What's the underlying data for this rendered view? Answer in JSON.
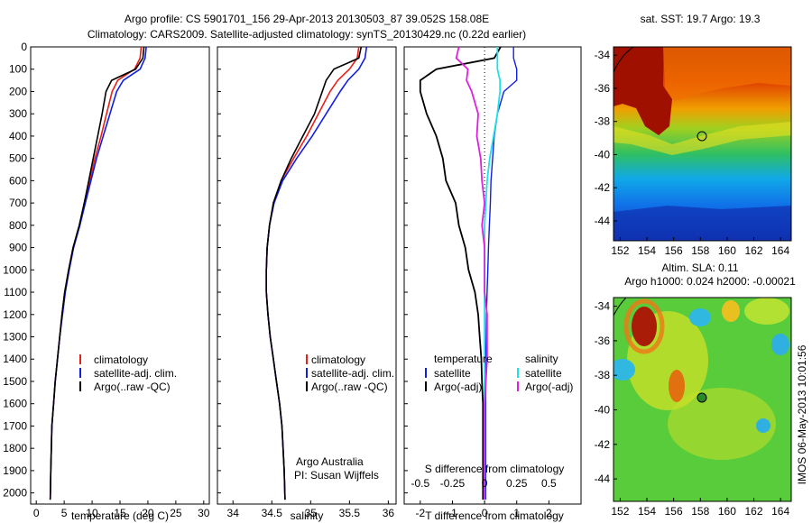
{
  "header": {
    "line1": "Argo profile: CS 5901701_156 29-Apr-2013 20130503_87 39.052S 158.08E",
    "line2": "Climatology: CARS2009. Satellite-adjusted climatology: synTS_20130429.nc (0.22d earlier)"
  },
  "depth_ticks": [
    "0",
    "100",
    "200",
    "300",
    "400",
    "500",
    "600",
    "700",
    "800",
    "900",
    "1000",
    "1100",
    "1200",
    "1300",
    "1400",
    "1500",
    "1600",
    "1700",
    "1800",
    "1900",
    "2000"
  ],
  "panels": {
    "temperature": {
      "xlabel": "temperature (deg C)",
      "xticks": [
        "0",
        "5",
        "10",
        "15",
        "20",
        "25",
        "30"
      ],
      "legend": [
        "climatology",
        "satellite-adj. clim.",
        "Argo(..raw -QC)"
      ]
    },
    "salinity": {
      "xlabel": "salinity",
      "xticks": [
        "34",
        "34.5",
        "35",
        "35.5",
        "36"
      ],
      "legend": [
        "climatology",
        "satellite-adj. clim.",
        "Argo(..raw -QC)"
      ],
      "credit1": "Argo Australia",
      "credit2": "PI: Susan Wijffels"
    },
    "difference": {
      "xlabel_bottom": "T difference from climatology",
      "xlabel_top": "S difference from climatology",
      "xticks_t": [
        "-2",
        "-1",
        "0",
        "1",
        "2"
      ],
      "xticks_s": [
        "-0.5",
        "-0.25",
        "0",
        "0.25",
        "0.5"
      ],
      "legend_t_title": "temperature",
      "legend_s_title": "salinity",
      "legend_t": [
        "satellite",
        "Argo(-adj)"
      ],
      "legend_s": [
        "satellite",
        "Argo(-adj)"
      ]
    },
    "sst_map": {
      "title": "sat. SST: 19.7 Argo: 19.3",
      "lat_ticks": [
        "-34",
        "-36",
        "-38",
        "-40",
        "-42",
        "-44"
      ],
      "lon_ticks": [
        "152",
        "154",
        "156",
        "158",
        "160",
        "162",
        "164"
      ]
    },
    "sla_map": {
      "title1": "Altim. SLA: 0.11",
      "title2": "Argo h1000: 0.024 h2000: -0.00021",
      "lat_ticks": [
        "-34",
        "-36",
        "-38",
        "-40",
        "-42",
        "-44"
      ],
      "lon_ticks": [
        "152",
        "154",
        "156",
        "158",
        "160",
        "162",
        "164"
      ],
      "side_text": "IMOS 06-May-2013 10:01:56"
    }
  },
  "colors": {
    "climatology": "#e8201a",
    "satellite": "#1020e0",
    "argo": "#000000",
    "sat_s": "#20e0e8",
    "argo_s": "#e020e0"
  },
  "chart_data": [
    {
      "type": "line",
      "xlabel": "temperature (deg C)",
      "ylabel": "",
      "xlim": [
        -1,
        31
      ],
      "ylim": [
        2050,
        0
      ],
      "series": [
        {
          "name": "climatology",
          "x": [
            18.8,
            18.6,
            17.6,
            14.6,
            13.6,
            12.6,
            11.6,
            10.5,
            9.6,
            8.6,
            7.8,
            6.6,
            5.8,
            5.1,
            4.6,
            4.2,
            3.8,
            3.4,
            3.1,
            2.8,
            2.6,
            2.5
          ],
          "y": [
            0,
            50,
            100,
            150,
            200,
            300,
            400,
            500,
            600,
            700,
            800,
            900,
            1000,
            1100,
            1200,
            1300,
            1400,
            1500,
            1600,
            1700,
            1900,
            2030
          ]
        },
        {
          "name": "satellite-adj. clim.",
          "x": [
            19.7,
            19.5,
            18.6,
            15.6,
            14.4,
            13.2,
            12.0,
            10.8,
            9.8,
            8.8,
            7.8,
            6.7,
            5.9,
            5.2,
            4.7,
            4.2,
            3.8,
            3.4,
            3.1,
            2.8,
            2.6,
            2.5
          ],
          "y": [
            0,
            50,
            100,
            150,
            200,
            300,
            400,
            500,
            600,
            700,
            800,
            900,
            1000,
            1100,
            1200,
            1300,
            1400,
            1500,
            1600,
            1700,
            1900,
            2030
          ]
        },
        {
          "name": "Argo(..raw -QC)",
          "x": [
            19.3,
            19.1,
            17.8,
            13.5,
            12.5,
            11.8,
            11.0,
            10.2,
            9.4,
            8.6,
            7.7,
            6.6,
            5.8,
            5.1,
            4.6,
            4.2,
            3.8,
            3.4,
            3.1,
            2.8,
            2.6,
            2.5
          ],
          "y": [
            0,
            50,
            100,
            150,
            200,
            300,
            400,
            500,
            600,
            700,
            800,
            900,
            1000,
            1100,
            1200,
            1300,
            1400,
            1500,
            1600,
            1700,
            1900,
            2030
          ]
        }
      ]
    },
    {
      "type": "line",
      "xlabel": "salinity",
      "ylabel": "",
      "xlim": [
        33.8,
        36.1
      ],
      "ylim": [
        2050,
        0
      ],
      "series": [
        {
          "name": "climatology",
          "x": [
            35.62,
            35.6,
            35.5,
            35.35,
            35.25,
            35.1,
            34.95,
            34.78,
            34.62,
            34.52,
            34.47,
            34.44,
            34.43,
            34.43,
            34.45,
            34.48,
            34.52,
            34.56,
            34.6,
            34.63,
            34.66,
            34.67
          ],
          "y": [
            0,
            50,
            100,
            150,
            200,
            300,
            400,
            500,
            600,
            700,
            800,
            900,
            1000,
            1100,
            1200,
            1300,
            1400,
            1500,
            1600,
            1700,
            1900,
            2030
          ]
        },
        {
          "name": "satellite-adj. clim.",
          "x": [
            35.72,
            35.7,
            35.62,
            35.48,
            35.38,
            35.2,
            35.02,
            34.82,
            34.64,
            34.53,
            34.47,
            34.44,
            34.43,
            34.43,
            34.45,
            34.48,
            34.52,
            34.56,
            34.6,
            34.63,
            34.66,
            34.67
          ],
          "y": [
            0,
            50,
            100,
            150,
            200,
            300,
            400,
            500,
            600,
            700,
            800,
            900,
            1000,
            1100,
            1200,
            1300,
            1400,
            1500,
            1600,
            1700,
            1900,
            2030
          ]
        },
        {
          "name": "Argo(..raw -QC)",
          "x": [
            35.65,
            35.62,
            35.3,
            35.2,
            35.15,
            35.05,
            34.9,
            34.75,
            34.62,
            34.52,
            34.47,
            34.44,
            34.43,
            34.43,
            34.45,
            34.48,
            34.52,
            34.56,
            34.6,
            34.63,
            34.66,
            34.67
          ],
          "y": [
            0,
            50,
            100,
            150,
            200,
            300,
            400,
            500,
            600,
            700,
            800,
            900,
            1000,
            1100,
            1200,
            1300,
            1400,
            1500,
            1600,
            1700,
            1900,
            2030
          ]
        }
      ]
    },
    {
      "type": "line",
      "xlabel": "T difference from climatology",
      "ylabel": "",
      "xlim": [
        -2.5,
        3.0
      ],
      "ylim": [
        2050,
        0
      ],
      "series": [
        {
          "name": "satellite",
          "x": [
            0.9,
            0.9,
            1.0,
            1.0,
            0.6,
            0.4,
            0.3,
            0.25,
            0.2,
            0.18,
            0.15,
            0.12,
            0.1,
            0.08,
            0.06,
            0.05,
            0.04,
            0.03,
            0.03,
            0.03,
            0.03,
            0.03
          ],
          "y": [
            0,
            50,
            100,
            150,
            200,
            300,
            400,
            500,
            600,
            700,
            800,
            900,
            1000,
            1100,
            1200,
            1300,
            1400,
            1500,
            1600,
            1700,
            1900,
            2030
          ]
        },
        {
          "name": "Argo(-adj)",
          "x": [
            0.5,
            0.3,
            -1.5,
            -2.0,
            -2.0,
            -1.8,
            -1.5,
            -1.3,
            -1.2,
            -0.9,
            -0.8,
            -0.6,
            -0.5,
            -0.3,
            -0.2,
            -0.15,
            -0.1,
            -0.08,
            -0.05,
            -0.05,
            -0.05,
            -0.05
          ],
          "y": [
            0,
            50,
            100,
            150,
            200,
            300,
            400,
            500,
            600,
            700,
            800,
            900,
            1000,
            1100,
            1200,
            1300,
            1400,
            1500,
            1600,
            1700,
            1900,
            2030
          ]
        }
      ]
    },
    {
      "type": "line",
      "xlabel": "S difference from climatology",
      "ylabel": "",
      "xlim": [
        -0.625,
        0.75
      ],
      "ylim": [
        2050,
        0
      ],
      "series": [
        {
          "name": "satellite",
          "x": [
            0.1,
            0.1,
            0.1,
            0.12,
            0.12,
            0.1,
            0.07,
            0.04,
            0.02,
            0.01,
            0.0,
            0.0,
            0.0,
            0.0,
            0.0,
            0.0,
            0.0,
            0.0,
            0.0,
            0.0,
            0.0,
            0.0
          ],
          "y": [
            0,
            50,
            100,
            150,
            200,
            300,
            400,
            500,
            600,
            700,
            800,
            900,
            1000,
            1100,
            1200,
            1300,
            1400,
            1500,
            1600,
            1700,
            1900,
            2030
          ]
        },
        {
          "name": "Argo(-adj)",
          "x": [
            -0.2,
            -0.22,
            -0.13,
            -0.14,
            -0.1,
            -0.05,
            -0.06,
            -0.03,
            -0.02,
            0.0,
            -0.02,
            0.0,
            0.0,
            0.0,
            0.02,
            0.02,
            0.02,
            0.01,
            0.0,
            0.0,
            0.0,
            0.0
          ],
          "y": [
            0,
            50,
            100,
            150,
            200,
            300,
            400,
            500,
            600,
            700,
            800,
            900,
            1000,
            1100,
            1200,
            1300,
            1400,
            1500,
            1600,
            1700,
            1900,
            2030
          ]
        }
      ]
    }
  ]
}
